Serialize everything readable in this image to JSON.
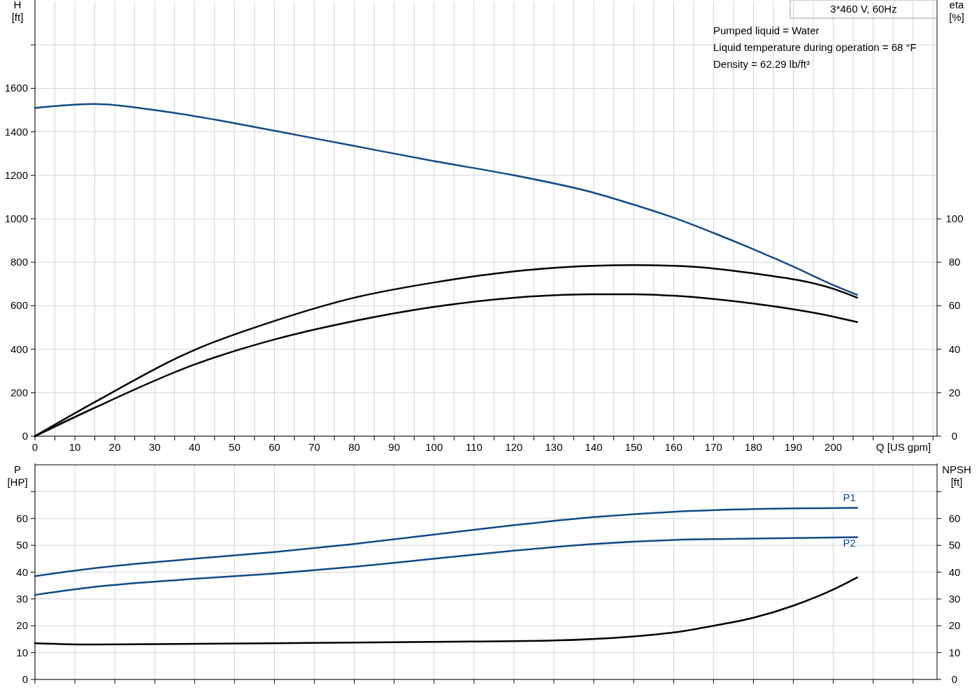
{
  "chart_data": [
    {
      "type": "line",
      "title": "3*460 V, 60Hz",
      "xlabel": "Q [US gpm]",
      "ylabel": "H [ft]",
      "y2label": "eta [%]",
      "annotations": [
        "Pumped liquid = Water",
        "Liquid temperature during operation = 68 °F",
        "Density = 62.29 lb/ft³"
      ],
      "xlim": [
        0,
        226
      ],
      "xticks": [
        0,
        {
          "value": 5,
          "label": null
        },
        10,
        {
          "value": 15,
          "label": null
        },
        20,
        {
          "value": 25,
          "label": null
        },
        30,
        {
          "value": 35,
          "label": null
        },
        40,
        {
          "value": 45,
          "label": null
        },
        50,
        {
          "value": 55,
          "label": null
        },
        60,
        {
          "value": 65,
          "label": null
        },
        70,
        {
          "value": 75,
          "label": null
        },
        80,
        {
          "value": 85,
          "label": null
        },
        90,
        {
          "value": 95,
          "label": null
        },
        100,
        {
          "value": 105,
          "label": null
        },
        110,
        {
          "value": 115,
          "label": null
        },
        120,
        {
          "value": 125,
          "label": null
        },
        130,
        {
          "value": 135,
          "label": null
        },
        140,
        {
          "value": 145,
          "label": null
        },
        150,
        {
          "value": 155,
          "label": null
        },
        160,
        {
          "value": 165,
          "label": null
        },
        170,
        {
          "value": 175,
          "label": null
        },
        180,
        {
          "value": 185,
          "label": null
        },
        190,
        {
          "value": 195,
          "label": null
        },
        200,
        {
          "value": 205,
          "label": null
        },
        {
          "value": 210,
          "label": null
        },
        {
          "value": 215,
          "label": null
        },
        {
          "value": 220,
          "label": null
        },
        {
          "value": 225,
          "label": null
        }
      ],
      "ylim": [
        0,
        2000
      ],
      "yticks": [
        0,
        200,
        400,
        600,
        800,
        1000,
        1200,
        1400,
        1600,
        {
          "value": 1800,
          "label": null
        }
      ],
      "y2lim": [
        0,
        200
      ],
      "y2ticks": [
        0,
        20,
        40,
        60,
        80,
        100
      ],
      "grid": true,
      "series": [
        {
          "color": "#114a86",
          "x": [
            0,
            10,
            15,
            30,
            50,
            60,
            80,
            100,
            120,
            140,
            150,
            160,
            170,
            180,
            190,
            200,
            206
          ],
          "values": [
            1510,
            1525,
            1528,
            1500,
            1440,
            1405,
            1335,
            1265,
            1200,
            1120,
            1065,
            1005,
            935,
            860,
            780,
            695,
            650
          ]
        },
        {
          "color": "#000000",
          "axis": "y2",
          "x": [
            0,
            15,
            40,
            60,
            80,
            100,
            120,
            140,
            150,
            160,
            180,
            200,
            206
          ],
          "values": [
            0,
            15.7,
            39.7,
            53,
            63.7,
            70.7,
            75.8,
            78.4,
            78.7,
            78.4,
            74.9,
            67.8,
            63.7
          ]
        },
        {
          "color": "#000000",
          "axis": "y2",
          "x": [
            0,
            15,
            40,
            60,
            80,
            100,
            120,
            140,
            150,
            160,
            180,
            200,
            206
          ],
          "values": [
            0,
            13.1,
            33,
            44.5,
            53,
            59.5,
            63.7,
            65.3,
            65.3,
            64.6,
            61,
            55,
            52.5
          ]
        }
      ]
    },
    {
      "type": "line",
      "ylabel": "P [HP]",
      "y2label": "NPSH [ft]",
      "tick_labels": "y",
      "xlim": [
        0,
        226
      ],
      "xticks": [
        {
          "value": 0,
          "label": null
        },
        {
          "value": 10,
          "label": null
        },
        {
          "value": 20,
          "label": null
        },
        {
          "value": 30,
          "label": null
        },
        {
          "value": 40,
          "label": null
        },
        {
          "value": 50,
          "label": null
        },
        {
          "value": 60,
          "label": null
        },
        {
          "value": 70,
          "label": null
        },
        {
          "value": 80,
          "label": null
        },
        {
          "value": 90,
          "label": null
        },
        {
          "value": 100,
          "label": null
        },
        {
          "value": 110,
          "label": null
        },
        {
          "value": 120,
          "label": null
        },
        {
          "value": 130,
          "label": null
        },
        {
          "value": 140,
          "label": null
        },
        {
          "value": 150,
          "label": null
        },
        {
          "value": 160,
          "label": null
        },
        {
          "value": 170,
          "label": null
        },
        {
          "value": 180,
          "label": null
        },
        {
          "value": 190,
          "label": null
        },
        {
          "value": 200,
          "label": null
        },
        {
          "value": 210,
          "label": null
        },
        {
          "value": 220,
          "label": null
        }
      ],
      "ylim": [
        0,
        80
      ],
      "yticks": [
        0,
        10,
        20,
        30,
        40,
        50,
        60,
        {
          "value": 70,
          "label": null
        }
      ],
      "y2lim": [
        0,
        80
      ],
      "y2ticks": [
        0,
        10,
        20,
        30,
        40,
        50,
        60,
        {
          "value": 70,
          "label": null
        }
      ],
      "grid": true,
      "series": [
        {
          "name": "P1",
          "color": "#114a86",
          "x": [
            0,
            15,
            40,
            60,
            80,
            100,
            120,
            140,
            160,
            180,
            206
          ],
          "values": [
            38.5,
            41.5,
            45,
            47.5,
            50.5,
            54,
            57.5,
            60.5,
            62.5,
            63.5,
            64
          ]
        },
        {
          "name": "P2",
          "color": "#114a86",
          "x": [
            0,
            15,
            40,
            60,
            80,
            100,
            120,
            140,
            160,
            180,
            206
          ],
          "values": [
            31.5,
            34.5,
            37.5,
            39.5,
            42,
            45,
            48,
            50.5,
            52,
            52.5,
            53
          ]
        },
        {
          "color": "#000000",
          "axis": "y2",
          "x": [
            0,
            15,
            60,
            100,
            130,
            150,
            160,
            170,
            180,
            190,
            200,
            206
          ],
          "values": [
            13.5,
            13,
            13.5,
            14,
            14.5,
            16,
            17.5,
            20,
            23,
            27.5,
            33.5,
            38
          ]
        }
      ]
    }
  ]
}
